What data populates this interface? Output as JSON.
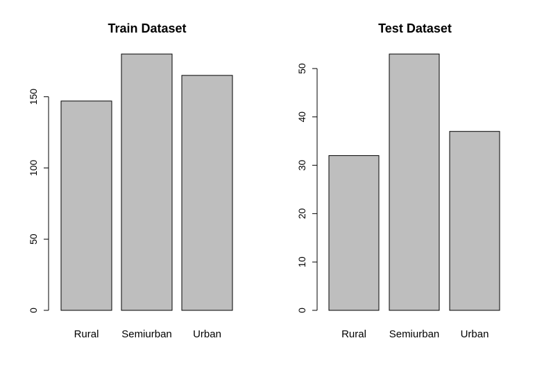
{
  "chart_data": [
    {
      "type": "bar",
      "title": "Train Dataset",
      "categories": [
        "Rural",
        "Semiurban",
        "Urban"
      ],
      "values": [
        147,
        180,
        165
      ],
      "ylim": [
        0,
        180
      ],
      "yticks": [
        0,
        50,
        100,
        150
      ],
      "xlabel": "",
      "ylabel": "",
      "bar_color": "#bebebe",
      "grid": false
    },
    {
      "type": "bar",
      "title": "Test Dataset",
      "categories": [
        "Rural",
        "Semiurban",
        "Urban"
      ],
      "values": [
        32,
        53,
        37
      ],
      "ylim": [
        0,
        53
      ],
      "yticks": [
        0,
        10,
        20,
        30,
        40,
        50
      ],
      "xlabel": "",
      "ylabel": "",
      "bar_color": "#bebebe",
      "grid": false
    }
  ]
}
